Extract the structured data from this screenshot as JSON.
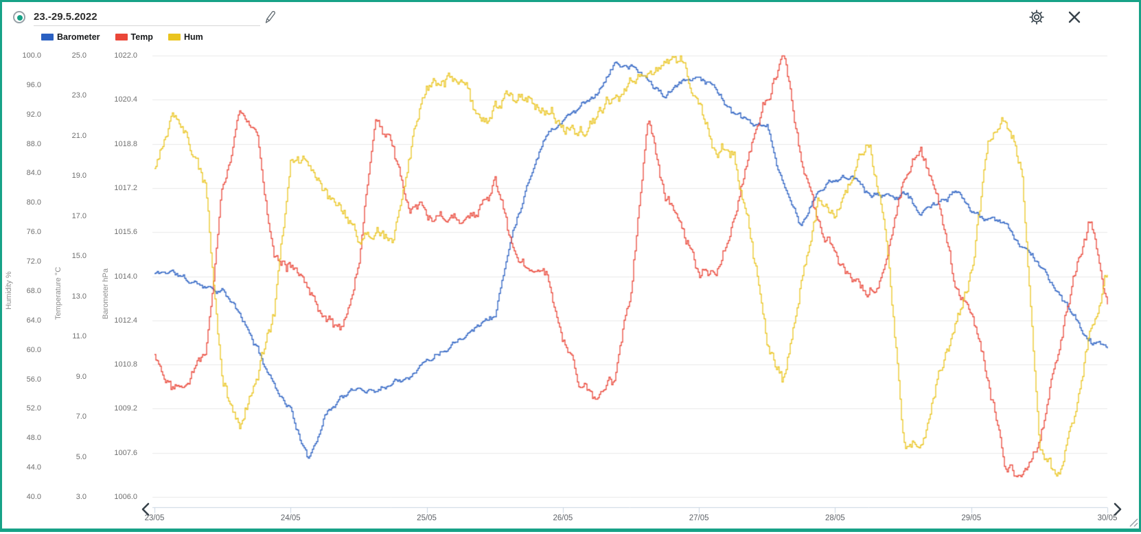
{
  "header": {
    "title_value": "23.-29.5.2022",
    "accent_color": "#17a287"
  },
  "legend": [
    {
      "label": "Barometer",
      "color": "#2a60c2"
    },
    {
      "label": "Temp",
      "color": "#ea4638"
    },
    {
      "label": "Hum",
      "color": "#eac41e"
    }
  ],
  "axes": {
    "humidity": {
      "title": "Humidity %",
      "ticks": [
        "100.0",
        "96.0",
        "92.0",
        "88.0",
        "84.0",
        "80.0",
        "76.0",
        "72.0",
        "68.0",
        "64.0",
        "60.0",
        "56.0",
        "52.0",
        "48.0",
        "44.0",
        "40.0"
      ]
    },
    "temperature": {
      "title": "Temperature °C",
      "ticks": [
        "25.0",
        "23.0",
        "21.0",
        "19.0",
        "17.0",
        "15.0",
        "13.0",
        "11.0",
        "9.0",
        "7.0",
        "5.0",
        "3.0"
      ]
    },
    "barometer": {
      "title": "Barometer hPa",
      "ticks": [
        "1022.0",
        "1020.4",
        "1018.8",
        "1017.2",
        "1015.6",
        "1014.0",
        "1012.4",
        "1010.8",
        "1009.2",
        "1007.6",
        "1006.0"
      ]
    }
  },
  "chart_data": {
    "type": "line",
    "title": "23.-29.5.2022",
    "grid": "horizontal-only",
    "legend_position": "top-left",
    "x_axis": {
      "tick_labels": [
        "23/05",
        "24/05",
        "25/05",
        "26/05",
        "27/05",
        "28/05",
        "29/05",
        "30/05"
      ],
      "start": "23/05 00:00",
      "end": "30/05 00:00",
      "sample_interval_hours": 3
    },
    "series": [
      {
        "name": "Barometer",
        "unit": "hPa",
        "color": "#2a60c2",
        "axis_range": [
          1006.0,
          1022.0
        ],
        "values": [
          1014.1,
          1014.2,
          1013.8,
          1013.7,
          1013.5,
          1012.6,
          1011.4,
          1010.1,
          1009.2,
          1007.3,
          1009.0,
          1009.7,
          1009.9,
          1009.9,
          1010.2,
          1010.5,
          1011.0,
          1011.4,
          1011.9,
          1012.3,
          1012.6,
          1015.5,
          1017.6,
          1019.2,
          1019.7,
          1020.2,
          1020.7,
          1021.7,
          1021.6,
          1021.1,
          1020.5,
          1021.0,
          1021.3,
          1020.8,
          1019.9,
          1019.5,
          1019.3,
          1017.2,
          1015.8,
          1017.1,
          1017.5,
          1017.7,
          1017.0,
          1016.9,
          1017.1,
          1016.3,
          1016.6,
          1017.0,
          1016.4,
          1016.0,
          1015.9,
          1015.1,
          1014.4,
          1013.5,
          1012.5,
          1011.6,
          1011.4
        ]
      },
      {
        "name": "Temp",
        "unit": "°C",
        "color": "#ea4638",
        "axis_range": [
          3.0,
          25.0
        ],
        "values": [
          10.1,
          8.6,
          9.2,
          10.5,
          18.5,
          22.0,
          20.9,
          15.3,
          14.7,
          13.4,
          12.3,
          11.3,
          14.5,
          21.8,
          20.3,
          17.8,
          17.2,
          17.0,
          17.1,
          17.5,
          18.8,
          15.3,
          14.2,
          13.9,
          10.8,
          8.7,
          7.8,
          8.8,
          13.3,
          22.5,
          18.0,
          16.2,
          14.0,
          13.9,
          16.5,
          20.5,
          23.2,
          24.8,
          19.5,
          16.4,
          15.1,
          14.2,
          13.2,
          14.5,
          19.0,
          20.3,
          18.2,
          13.5,
          12.0,
          9.0,
          4.8,
          3.8,
          6.0,
          9.5,
          14.0,
          16.8,
          12.6
        ]
      },
      {
        "name": "Hum",
        "unit": "%",
        "color": "#eac41e",
        "axis_range": [
          40.0,
          100.0
        ],
        "values": [
          84.5,
          91.5,
          88.5,
          82.0,
          55.0,
          49.5,
          56.5,
          65.0,
          85.5,
          86.0,
          81.5,
          78.0,
          74.5,
          76.5,
          75.0,
          86.5,
          95.0,
          96.0,
          96.3,
          90.5,
          92.5,
          95.0,
          93.8,
          92.5,
          91.0,
          89.8,
          91.5,
          93.2,
          96.0,
          97.8,
          98.3,
          98.7,
          93.0,
          87.0,
          87.5,
          75.5,
          61.0,
          55.5,
          70.0,
          80.5,
          77.5,
          83.0,
          87.5,
          75.5,
          48.0,
          47.0,
          56.0,
          62.5,
          70.0,
          88.5,
          92.5,
          83.5,
          48.0,
          42.5,
          50.0,
          63.0,
          70.5
        ]
      }
    ]
  },
  "colors": {
    "grid": "#e8e8e8",
    "x_axis_line": "#c8d4e0",
    "tick_text": "#6f6f6f",
    "icon": "#3e4a52"
  }
}
